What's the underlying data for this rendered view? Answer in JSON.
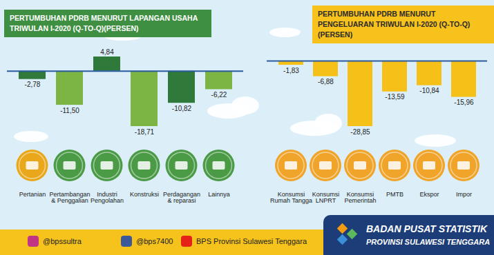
{
  "chart_data": [
    {
      "type": "bar",
      "title": "PERTUMBUHAN PDRB MENURUT LAPANGAN USAHA TRIWULAN I-2020 (Q-TO-Q)(PERSEN)",
      "categories": [
        "Pertanian",
        "Pertambangan & Penggalian",
        "Industri Pengolahan",
        "Konstruksi",
        "Perdagangan & reparasi",
        "Lainnya"
      ],
      "values": [
        -2.78,
        -11.5,
        4.84,
        -18.71,
        -10.82,
        -6.22
      ],
      "value_labels": [
        "-2,78",
        "-11,50",
        "4,84",
        "-18,71",
        "-10,82",
        "-6,22"
      ],
      "colors": [
        "#2f7a3a",
        "#7cb544",
        "#2f7a3a",
        "#7cb544",
        "#2f7a3a",
        "#7cb544"
      ],
      "data_labels": true,
      "tick_labels": "x"
    },
    {
      "type": "bar",
      "title": "PERTUMBUHAN PDRB MENURUT PENGELUARAN TRIWULAN I-2020 (Q-TO-Q)(PERSEN)",
      "categories": [
        "Konsumsi Rumah Tangga",
        "Konsumsi LNPRT",
        "Konsumsi Pemerintah",
        "PMTB",
        "Ekspor",
        "Impor"
      ],
      "values": [
        -1.83,
        -6.88,
        -28.85,
        -13.59,
        -10.84,
        -15.96
      ],
      "value_labels": [
        "-1,83",
        "-6,88",
        "-28,85",
        "-13,59",
        "-10,84",
        "-15,96"
      ],
      "color": "#f5c118",
      "data_labels": true,
      "tick_labels": "x"
    }
  ],
  "footer": {
    "social": [
      "@bpssultra",
      "@bps7400",
      "BPS Provinsi Sulawesi Tenggara"
    ],
    "organization": [
      "BADAN PUSAT STATISTIK",
      "PROVINSI SULAWESI TENGGARA"
    ]
  }
}
